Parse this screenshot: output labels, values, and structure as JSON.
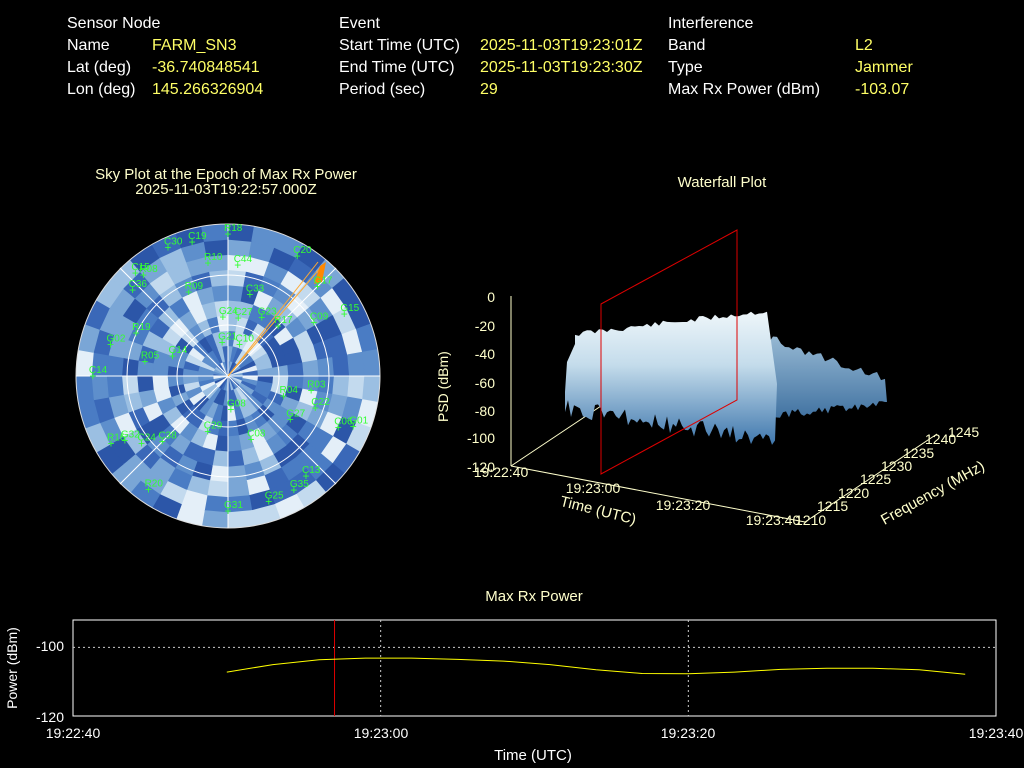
{
  "info": {
    "sensor": {
      "header": "Sensor Node",
      "rows": [
        {
          "label": "Name",
          "value": "FARM_SN3"
        },
        {
          "label": "Lat (deg)",
          "value": "-36.740848541"
        },
        {
          "label": "Lon (deg)",
          "value": "145.266326904"
        }
      ]
    },
    "event": {
      "header": "Event",
      "rows": [
        {
          "label": "Start Time (UTC)",
          "value": "2025-11-03T19:23:01Z"
        },
        {
          "label": "End Time (UTC)",
          "value": "2025-11-03T19:23:30Z"
        },
        {
          "label": "Period (sec)",
          "value": "29"
        }
      ]
    },
    "interference": {
      "header": "Interference",
      "rows": [
        {
          "label": "Band",
          "value": "L2"
        },
        {
          "label": "Type",
          "value": "Jammer"
        },
        {
          "label": "Max Rx Power (dBm)",
          "value": "-103.07"
        }
      ]
    }
  },
  "skyplot": {
    "title": "Sky Plot at the Epoch of Max Rx Power",
    "subtitle": "2025-11-03T19:22:57.000Z",
    "satellites": [
      {
        "id": "R18",
        "az": 0,
        "el": 6
      },
      {
        "id": "C30",
        "az": 335,
        "el": 6
      },
      {
        "id": "C19",
        "az": 345,
        "el": 8
      },
      {
        "id": "C20",
        "az": 30,
        "el": 8
      },
      {
        "id": "R10",
        "az": 350,
        "el": 22
      },
      {
        "id": "C44",
        "az": 5,
        "el": 24
      },
      {
        "id": "C15",
        "az": 318,
        "el": 8
      },
      {
        "id": "R08",
        "az": 320,
        "el": 12
      },
      {
        "id": "C36",
        "az": 312,
        "el": 14
      },
      {
        "id": "R09",
        "az": 335,
        "el": 35
      },
      {
        "id": "G24",
        "az": 355,
        "el": 55
      },
      {
        "id": "G23",
        "az": 30,
        "el": 50
      },
      {
        "id": "C27",
        "az": 10,
        "el": 55
      },
      {
        "id": "C33",
        "az": 15,
        "el": 40
      },
      {
        "id": "R17",
        "az": 45,
        "el": 48
      },
      {
        "id": "G15",
        "az": 62,
        "el": 12
      },
      {
        "id": "C09",
        "az": 58,
        "el": 30
      },
      {
        "id": "R19",
        "az": 295,
        "el": 30
      },
      {
        "id": "G02",
        "az": 285,
        "el": 18
      },
      {
        "id": "G14",
        "az": 290,
        "el": 55
      },
      {
        "id": "R05",
        "az": 280,
        "el": 40
      },
      {
        "id": "C14",
        "az": 270,
        "el": 10
      },
      {
        "id": "G21",
        "az": 350,
        "el": 70
      },
      {
        "id": "C10",
        "az": 20,
        "el": 70
      },
      {
        "id": "R03",
        "az": 100,
        "el": 40
      },
      {
        "id": "C22",
        "az": 110,
        "el": 35
      },
      {
        "id": "R04",
        "az": 110,
        "el": 55
      },
      {
        "id": "C06",
        "az": 115,
        "el": 18
      },
      {
        "id": "G01",
        "az": 112,
        "el": 10
      },
      {
        "id": "C38",
        "az": 225,
        "el": 35
      },
      {
        "id": "R16",
        "az": 240,
        "el": 10
      },
      {
        "id": "G32",
        "az": 238,
        "el": 18
      },
      {
        "id": "C24",
        "az": 232,
        "el": 25
      },
      {
        "id": "C29",
        "az": 200,
        "el": 55
      },
      {
        "id": "G08",
        "az": 175,
        "el": 70
      },
      {
        "id": "R20",
        "az": 215,
        "el": 8
      },
      {
        "id": "G31",
        "az": 180,
        "el": 10
      },
      {
        "id": "G35",
        "az": 150,
        "el": 12
      },
      {
        "id": "C13",
        "az": 142,
        "el": 15
      },
      {
        "id": "G25",
        "az": 162,
        "el": 12
      },
      {
        "id": "G27",
        "az": 125,
        "el": 45
      },
      {
        "id": "C08",
        "az": 160,
        "el": 50
      },
      {
        "id": "G17",
        "az": 45,
        "el": 15
      }
    ]
  },
  "waterfall": {
    "title": "Waterfall Plot",
    "zlabel": "PSD (dBm)",
    "xlabel": "Time (UTC)",
    "ylabel": "Frequency (MHz)",
    "z_ticks": [
      "0",
      "-20",
      "-40",
      "-60",
      "-80",
      "-100",
      "-120"
    ],
    "time_ticks": [
      "19:22:40",
      "19:23:00",
      "19:23:20",
      "19:23:40"
    ],
    "freq_ticks": [
      "1210",
      "1215",
      "1220",
      "1225",
      "1230",
      "1235",
      "1240",
      "1245"
    ]
  },
  "chart_data": {
    "type": "line",
    "title": "Max Rx Power",
    "xlabel": "Time (UTC)",
    "ylabel": "Power (dBm)",
    "x_tick_labels": [
      "19:22:40",
      "19:23:00",
      "19:23:20",
      "19:23:40"
    ],
    "y_tick_labels": [
      "-100",
      "-120"
    ],
    "xlim_sec": [
      0,
      60
    ],
    "ylim": [
      -120,
      -92
    ],
    "grid": true,
    "marker_time_sec": 17,
    "series": [
      {
        "x": [
          10,
          13,
          16,
          19,
          22,
          25,
          28,
          31,
          34,
          37,
          40,
          43,
          46,
          49,
          52,
          55,
          58
        ],
        "y": [
          -107.2,
          -105,
          -103.6,
          -103.1,
          -103.1,
          -103.5,
          -104,
          -105,
          -106.5,
          -107.6,
          -107.7,
          -107.2,
          -106.4,
          -106.1,
          -106.1,
          -106.5,
          -107.8
        ],
        "color": "#ffff00"
      }
    ]
  }
}
